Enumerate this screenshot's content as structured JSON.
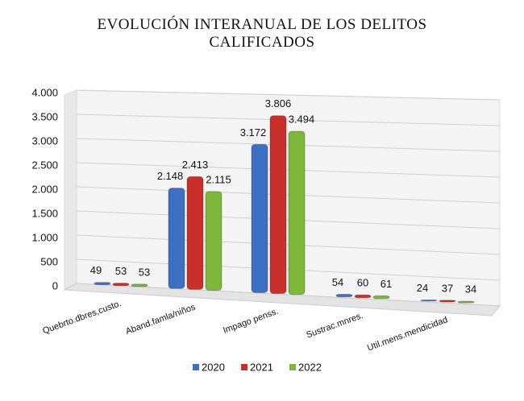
{
  "chart_data": {
    "type": "bar",
    "title": "EVOLUCIÓN INTERANUAL DE LOS DELITOS CALIFICADOS",
    "categories": [
      "Quebrto.dbres,custo.",
      "Aband.famla/niños",
      "Impago penss.",
      "Sustrac.mnres.",
      "Util.mens.mendicidad"
    ],
    "series": [
      {
        "name": "2020",
        "color": "#3d6fc2",
        "values": [
          49,
          2148,
          3172,
          54,
          24
        ],
        "value_labels": [
          "49",
          "2.148",
          "3.172",
          "54",
          "24"
        ]
      },
      {
        "name": "2021",
        "color": "#c9302c",
        "values": [
          53,
          2413,
          3806,
          60,
          37
        ],
        "value_labels": [
          "53",
          "2.413",
          "3.806",
          "60",
          "37"
        ]
      },
      {
        "name": "2022",
        "color": "#7db83a",
        "values": [
          53,
          2115,
          3494,
          61,
          34
        ],
        "value_labels": [
          "53",
          "2.115",
          "3.494",
          "61",
          "34"
        ]
      }
    ],
    "ylim": [
      0,
      4000
    ],
    "yticks": [
      0,
      500,
      {
        "value": 1000,
        "label": "1.000"
      },
      {
        "value": 1500,
        "label": "1.500"
      },
      {
        "value": 2000,
        "label": "2.000"
      },
      {
        "value": 2500,
        "label": "2.500"
      },
      {
        "value": 3000,
        "label": "3.000"
      },
      {
        "value": 3500,
        "label": "3.500"
      },
      {
        "value": 4000,
        "label": "4.000"
      }
    ],
    "grid": true,
    "legend": "bottom"
  }
}
